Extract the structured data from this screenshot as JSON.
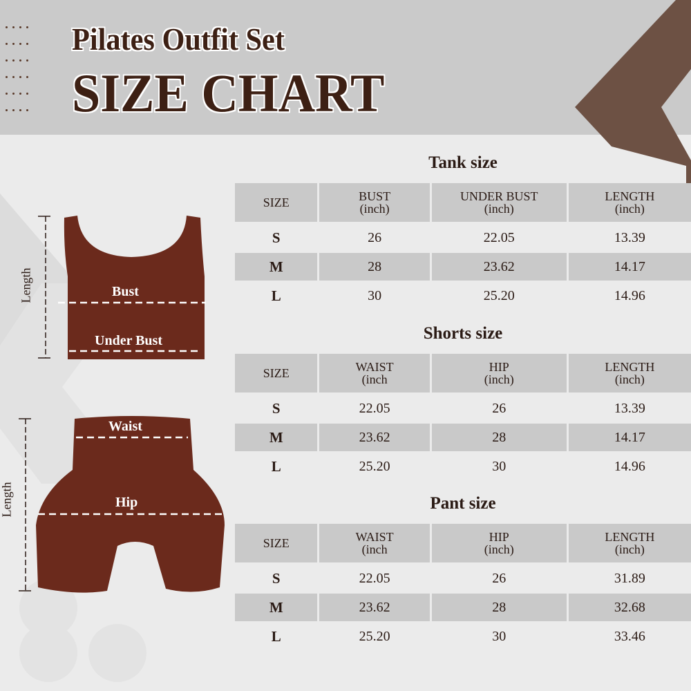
{
  "header": {
    "subtitle": "Pilates Outfit Set",
    "title": "SIZE CHART"
  },
  "colors": {
    "brand_brown": "#6d5144",
    "garment": "#6b2a1c",
    "text": "#2a1a14",
    "header_bg": "#cacaca",
    "row_alt": "#c9c9c9"
  },
  "diagram": {
    "tank": {
      "length": "Length",
      "bust": "Bust",
      "under_bust": "Under Bust"
    },
    "shorts": {
      "length": "Length",
      "waist": "Waist",
      "hip": "Hip"
    }
  },
  "tables": [
    {
      "title": "Tank size",
      "headers": [
        [
          "SIZE",
          ""
        ],
        [
          "BUST",
          "(inch)"
        ],
        [
          "UNDER BUST",
          "(inch)"
        ],
        [
          "LENGTH",
          "(inch)"
        ]
      ],
      "rows": [
        [
          "S",
          "26",
          "22.05",
          "13.39"
        ],
        [
          "M",
          "28",
          "23.62",
          "14.17"
        ],
        [
          "L",
          "30",
          "25.20",
          "14.96"
        ]
      ]
    },
    {
      "title": "Shorts size",
      "headers": [
        [
          "SIZE",
          ""
        ],
        [
          "WAIST",
          "(inch"
        ],
        [
          "HIP",
          "(inch)"
        ],
        [
          "LENGTH",
          "(inch)"
        ]
      ],
      "rows": [
        [
          "S",
          "22.05",
          "26",
          "13.39"
        ],
        [
          "M",
          "23.62",
          "28",
          "14.17"
        ],
        [
          "L",
          "25.20",
          "30",
          "14.96"
        ]
      ]
    },
    {
      "title": "Pant size",
      "headers": [
        [
          "SIZE",
          ""
        ],
        [
          "WAIST",
          "(inch"
        ],
        [
          "HIP",
          "(inch)"
        ],
        [
          "LENGTH",
          "(inch)"
        ]
      ],
      "rows": [
        [
          "S",
          "22.05",
          "26",
          "31.89"
        ],
        [
          "M",
          "23.62",
          "28",
          "32.68"
        ],
        [
          "L",
          "25.20",
          "30",
          "33.46"
        ]
      ]
    }
  ]
}
